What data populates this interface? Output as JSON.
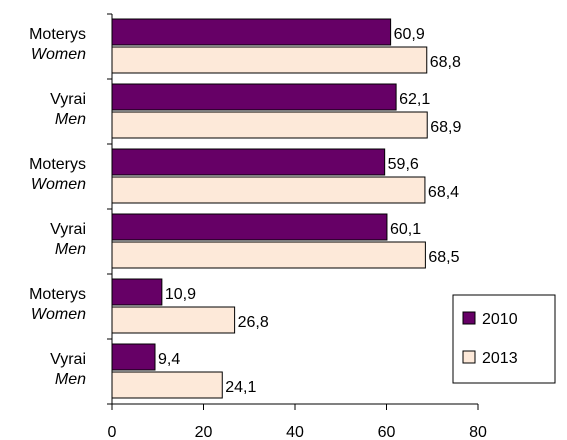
{
  "chart_data": {
    "type": "bar",
    "orientation": "horizontal",
    "categories": [
      {
        "label": "Moterys",
        "sublabel": "Women"
      },
      {
        "label": "Vyrai",
        "sublabel": "Men"
      },
      {
        "label": "Moterys",
        "sublabel": "Women"
      },
      {
        "label": "Vyrai",
        "sublabel": "Men"
      },
      {
        "label": "Moterys",
        "sublabel": "Women"
      },
      {
        "label": "Vyrai",
        "sublabel": "Men"
      }
    ],
    "series": [
      {
        "name": "2010",
        "color": "#660066",
        "values": [
          60.9,
          62.1,
          59.6,
          60.1,
          10.9,
          9.4
        ],
        "labels": [
          "60,9",
          "62,1",
          "59,6",
          "60,1",
          "10,9",
          "9,4"
        ]
      },
      {
        "name": "2013",
        "color": "#fde9d9",
        "values": [
          68.8,
          68.9,
          68.4,
          68.5,
          26.8,
          24.1
        ],
        "labels": [
          "68,8",
          "68,9",
          "68,4",
          "68,5",
          "26,8",
          "24,1"
        ]
      }
    ],
    "xlim": [
      0,
      80
    ],
    "xticks": [
      0,
      20,
      40,
      60,
      80
    ],
    "grid": false,
    "legend": "bottom-right",
    "title": "",
    "xlabel": "",
    "ylabel": ""
  }
}
